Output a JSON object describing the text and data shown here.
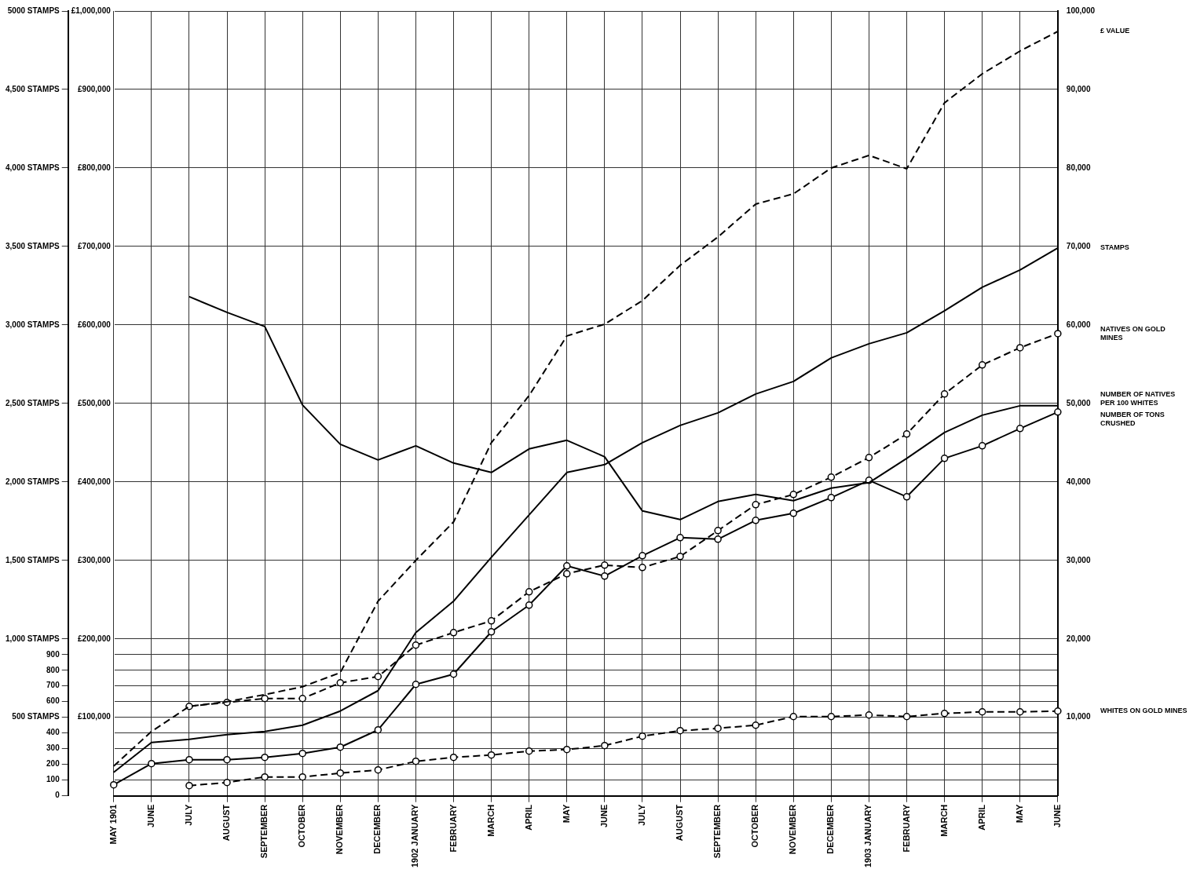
{
  "chart_data": {
    "type": "line",
    "categories": [
      "MAY 1901",
      "JUNE",
      "JULY",
      "AUGUST",
      "SEPTEMBER",
      "OCTOBER",
      "NOVEMBER",
      "DECEMBER",
      "1902 JANUARY",
      "FEBRUARY",
      "MARCH",
      "APRIL",
      "MAY",
      "JUNE",
      "JULY",
      "AUGUST",
      "SEPTEMBER",
      "OCTOBER",
      "NOVEMBER",
      "DECEMBER",
      "1903 JANUARY",
      "FEBRUARY",
      "MARCH",
      "APRIL",
      "MAY",
      "JUNE"
    ],
    "series": [
      {
        "name": "£ VALUE",
        "color": "#000000",
        "axis": "y3",
        "line_style": "dashed",
        "marker": "none",
        "values": [
          38000,
          82000,
          114000,
          120000,
          129000,
          139000,
          157000,
          248000,
          300000,
          349000,
          450000,
          510000,
          586000,
          601000,
          631000,
          676000,
          712000,
          754000,
          767000,
          800000,
          816000,
          799000,
          883000,
          920000,
          949000,
          974000
        ]
      },
      {
        "name": "STAMPS",
        "color": "#000000",
        "axis": "y",
        "line_style": "solid",
        "marker": "none",
        "values": [
          150,
          340,
          360,
          390,
          410,
          450,
          540,
          670,
          1040,
          1240,
          1520,
          1790,
          2060,
          2110,
          2250,
          2360,
          2440,
          2560,
          2640,
          2790,
          2880,
          2950,
          3090,
          3240,
          3350,
          3490
        ]
      },
      {
        "name": "NATIVES ON GOLD MINES",
        "color": "#000000",
        "axis": "y2",
        "line_style": "dashed",
        "marker": "circle",
        "values": [
          null,
          null,
          11400,
          11900,
          12400,
          12400,
          14400,
          15200,
          19200,
          20800,
          22300,
          26000,
          28300,
          29400,
          29100,
          30500,
          33800,
          37100,
          38400,
          40600,
          43100,
          46100,
          51200,
          54900,
          57100,
          58900
        ]
      },
      {
        "name": "NUMBER OF NATIVES PER 100 WHITES",
        "color": "#000000",
        "axis": "y2",
        "line_style": "solid",
        "marker": "none",
        "values": [
          null,
          null,
          63600,
          61600,
          59800,
          49800,
          44800,
          42800,
          44600,
          42400,
          41200,
          44200,
          45300,
          43200,
          36300,
          35200,
          37500,
          38400,
          37600,
          39200,
          39900,
          43000,
          46300,
          48500,
          49700,
          49700
        ]
      },
      {
        "name": "NUMBER OF TONS CRUSHED",
        "color": "#000000",
        "axis": "y2",
        "line_style": "solid",
        "marker": "circle",
        "values": [
          1400,
          4100,
          4600,
          4600,
          4900,
          5400,
          6200,
          8400,
          14200,
          15500,
          20900,
          24300,
          29300,
          28000,
          30600,
          32900,
          32700,
          35100,
          36000,
          38000,
          40200,
          38100,
          43000,
          44600,
          46800,
          48900
        ]
      },
      {
        "name": "WHITES ON GOLD MINES",
        "color": "#000000",
        "axis": "y2",
        "line_style": "dashed",
        "marker": "circle",
        "values": [
          null,
          null,
          1300,
          1700,
          2400,
          2400,
          2900,
          3300,
          4400,
          4900,
          5200,
          5700,
          5900,
          6400,
          7600,
          8300,
          8600,
          9000,
          10100,
          10100,
          10300,
          10100,
          10500,
          10700,
          10700,
          10800
        ]
      }
    ],
    "ylim": [
      0,
      5000
    ],
    "yticks": [
      0,
      100,
      200,
      300,
      400,
      {
        "value": 500,
        "label": "500 STAMPS"
      },
      600,
      700,
      800,
      900,
      {
        "value": 1000,
        "label": "1,000 STAMPS"
      },
      {
        "value": 1500,
        "label": "1,500 STAMPS"
      },
      {
        "value": 2000,
        "label": "2,000 STAMPS"
      },
      {
        "value": 2500,
        "label": "2,500 STAMPS"
      },
      {
        "value": 3000,
        "label": "3,000 STAMPS"
      },
      {
        "value": 3500,
        "label": "3,500 STAMPS"
      },
      {
        "value": 4000,
        "label": "4,000 STAMPS"
      },
      {
        "value": 4500,
        "label": "4,500 STAMPS"
      },
      {
        "value": 5000,
        "label": "5000 STAMPS"
      }
    ],
    "y3ticks": [
      {
        "value": 100000,
        "label": "£100,000"
      },
      {
        "value": 200000,
        "label": "£200,000"
      },
      {
        "value": 300000,
        "label": "£300,000"
      },
      {
        "value": 400000,
        "label": "£400,000"
      },
      {
        "value": 500000,
        "label": "£500,000"
      },
      {
        "value": 600000,
        "label": "£600,000"
      },
      {
        "value": 700000,
        "label": "£700,000"
      },
      {
        "value": 800000,
        "label": "£800,000"
      },
      {
        "value": 900000,
        "label": "£900,000"
      },
      {
        "value": 1000000,
        "label": "£1,000,000"
      }
    ],
    "y2lim": [
      0,
      100000
    ],
    "y2ticks": [
      {
        "value": 10000,
        "label": "10,000"
      },
      {
        "value": 20000,
        "label": "20,000"
      },
      {
        "value": 30000,
        "label": "30,000"
      },
      {
        "value": 40000,
        "label": "40,000"
      },
      {
        "value": 50000,
        "label": "50,000"
      },
      {
        "value": 60000,
        "label": "60,000"
      },
      {
        "value": 70000,
        "label": "70,000"
      },
      {
        "value": 80000,
        "label": "80,000"
      },
      {
        "value": 90000,
        "label": "90,000"
      },
      {
        "value": 100000,
        "label": "100,000"
      }
    ],
    "y3lim": [
      0,
      1000000
    ],
    "grid": true,
    "legend": false
  }
}
